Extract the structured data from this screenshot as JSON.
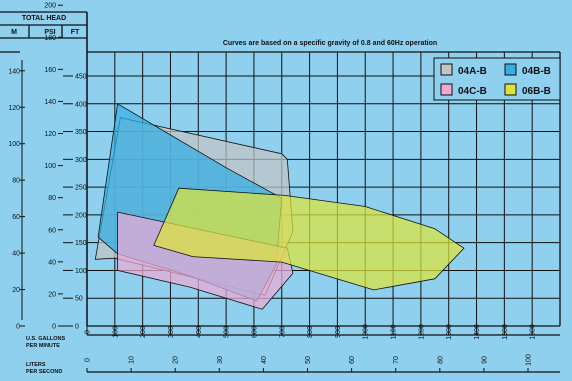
{
  "chart_data": {
    "type": "area",
    "title": "Curves are based on a specific gravity of 0.8 and 60Hz operation",
    "head_header": "TOTAL HEAD",
    "unit_headers": [
      "M",
      "PSI",
      "FT"
    ],
    "m_ticks": [
      "0",
      "20",
      "40",
      "60",
      "80",
      "100",
      "120",
      "140"
    ],
    "psi_ticks": [
      "0",
      "20",
      "40",
      "60",
      "80",
      "100",
      "120",
      "140",
      "160",
      "180",
      "200"
    ],
    "ft_ticks": [
      "0",
      "50",
      "100",
      "150",
      "200",
      "250",
      "300",
      "350",
      "400",
      "450"
    ],
    "gpm_label": [
      "U.S. GALLONS",
      "PER MINUTE"
    ],
    "gpm_ticks": [
      "0",
      "100",
      "200",
      "300",
      "400",
      "500",
      "600",
      "700",
      "800",
      "900",
      "1000",
      "1100",
      "1200",
      "1300",
      "1400",
      "1500",
      "1600"
    ],
    "lps_label": [
      "LITERS",
      "PER SECOND"
    ],
    "lps_ticks": [
      "0",
      "10",
      "20",
      "30",
      "40",
      "50",
      "60",
      "70",
      "80",
      "90",
      "100"
    ],
    "xlim": [
      0,
      1700
    ],
    "ylim": [
      0,
      500
    ],
    "series": [
      {
        "name": "04A-B",
        "color": "#c3c4c5",
        "points": [
          [
            30,
            120
          ],
          [
            120,
            375
          ],
          [
            700,
            310
          ],
          [
            720,
            300
          ],
          [
            740,
            170
          ],
          [
            640,
            55
          ],
          [
            360,
            90
          ],
          [
            100,
            122
          ],
          [
            30,
            120
          ]
        ]
      },
      {
        "name": "04B-B",
        "color": "#34aee3",
        "points": [
          [
            40,
            160
          ],
          [
            110,
            400
          ],
          [
            500,
            285
          ],
          [
            700,
            230
          ],
          [
            680,
            110
          ],
          [
            610,
            45
          ],
          [
            370,
            90
          ],
          [
            110,
            130
          ],
          [
            40,
            160
          ]
        ]
      },
      {
        "name": "04C-B",
        "color": "#ecaad5",
        "points": [
          [
            110,
            205
          ],
          [
            720,
            140
          ],
          [
            740,
            95
          ],
          [
            630,
            30
          ],
          [
            370,
            70
          ],
          [
            110,
            100
          ],
          [
            110,
            205
          ]
        ]
      },
      {
        "name": "06B-B",
        "color": "#dce43a",
        "points": [
          [
            240,
            145
          ],
          [
            330,
            248
          ],
          [
            710,
            235
          ],
          [
            1000,
            215
          ],
          [
            1250,
            175
          ],
          [
            1355,
            140
          ],
          [
            1250,
            85
          ],
          [
            1030,
            65
          ],
          [
            700,
            115
          ],
          [
            380,
            125
          ],
          [
            240,
            145
          ]
        ]
      }
    ],
    "legend": {
      "placement": "top-right",
      "columns": 2
    }
  }
}
